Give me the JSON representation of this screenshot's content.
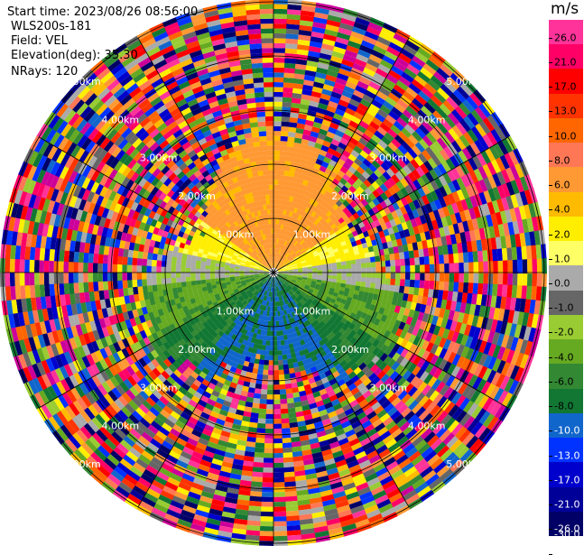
{
  "info": {
    "start_time": "Start time: 2023/08/26 08:56:00",
    "site": "WLS200s-181",
    "field": "Field: VEL",
    "elevation": "Elevation(deg): 35.30",
    "nrays": "NRays: 120"
  },
  "range_rings": [
    "1.00km",
    "2.00km",
    "3.00km",
    "4.00km",
    "5.00km"
  ],
  "colorbar": {
    "unit": "m/s",
    "ticks": [
      "26.0",
      "21.0",
      "17.0",
      "13.0",
      "10.0",
      "8.0",
      "6.0",
      "4.0",
      "2.0",
      "1.0",
      "0.0",
      "-1.0",
      "-2.0",
      "-4.0",
      "-6.0",
      "-8.0",
      "-10.0",
      "-13.0",
      "-17.0",
      "-21.0",
      "-26.0",
      "-30.0"
    ],
    "colors": [
      "#ff3399",
      "#ff0066",
      "#ff0000",
      "#ff3300",
      "#ff6600",
      "#ff7755",
      "#ff9933",
      "#ffbb00",
      "#ffee00",
      "#ffff66",
      "#aaaaaa",
      "#666666",
      "#99cc33",
      "#66aa22",
      "#338833",
      "#117733",
      "#1166cc",
      "#0033ff",
      "#0000cc",
      "#000099",
      "#000066"
    ]
  }
}
